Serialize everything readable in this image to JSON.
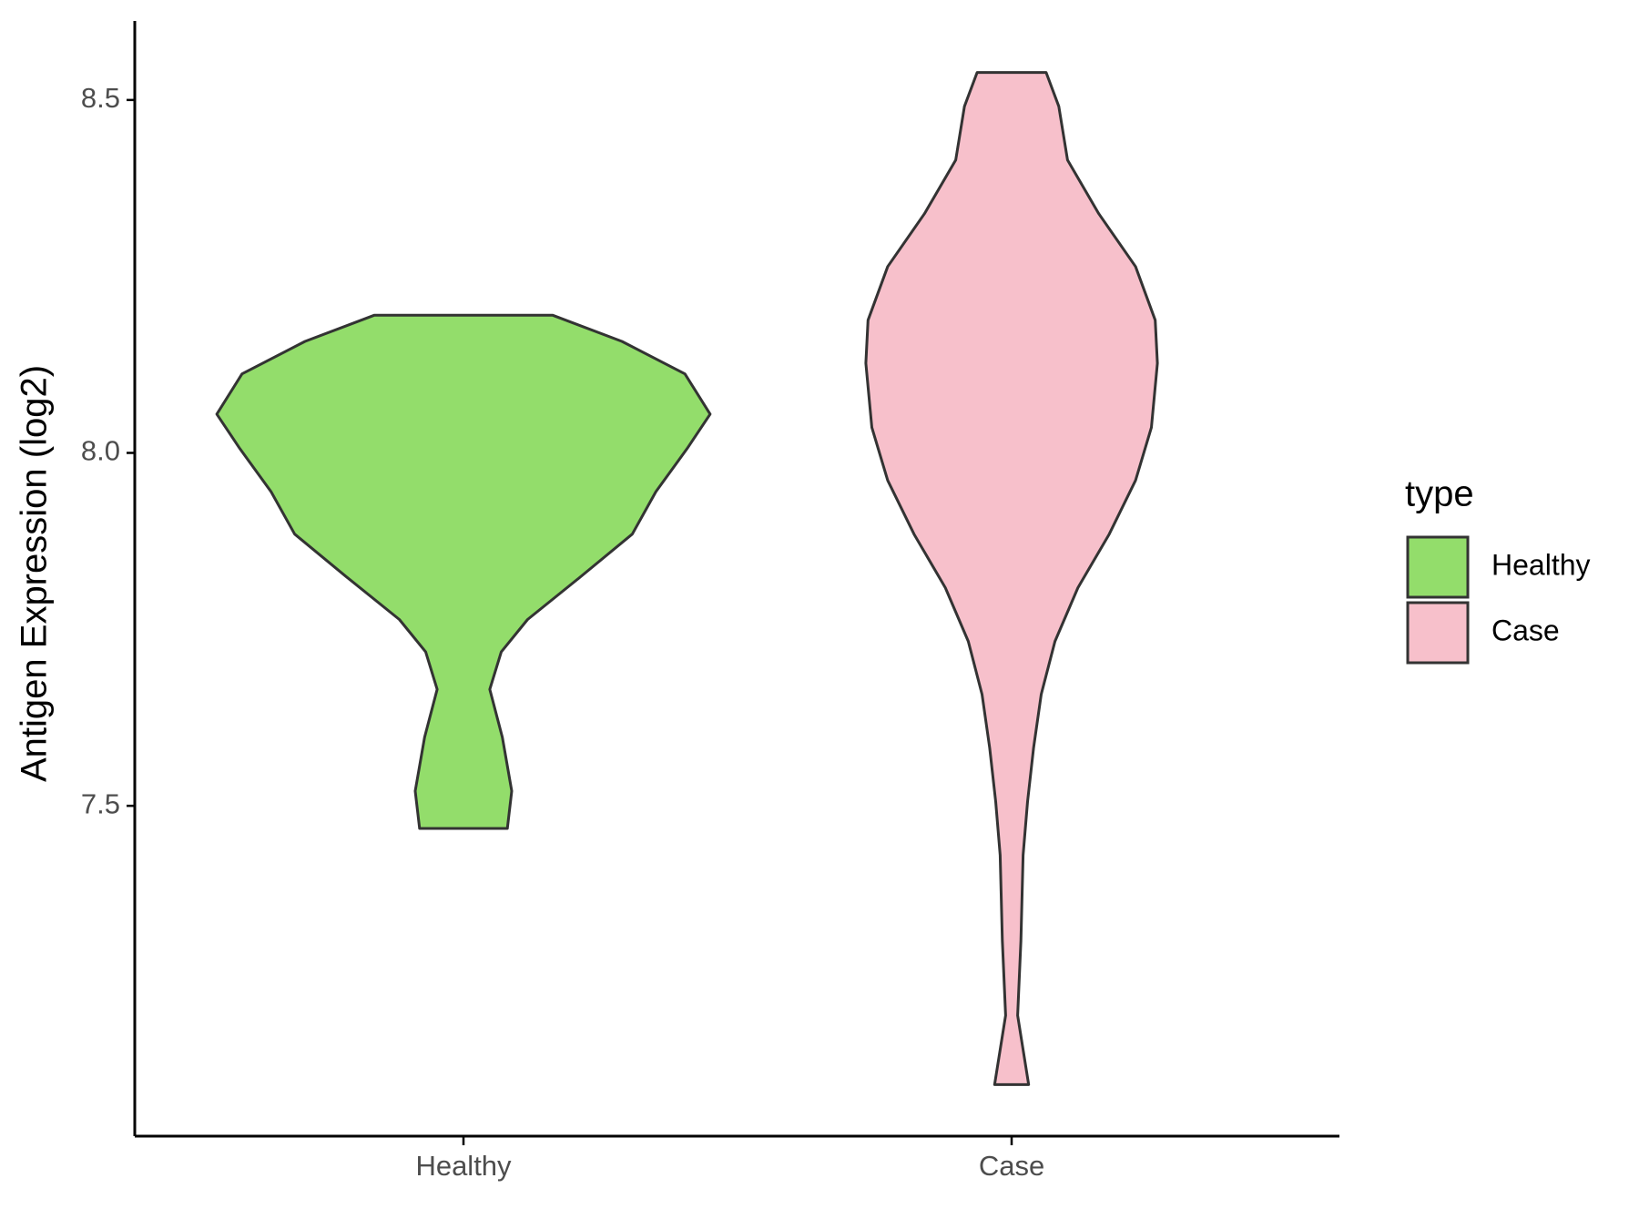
{
  "chart_data": {
    "type": "violin",
    "y_label": "Antigen Expression (log2)",
    "categories": [
      "Healthy",
      "Case"
    ],
    "legend_title": "type",
    "legend": "right",
    "ylim": [
      7.032,
      8.612
    ],
    "yticks": [
      7.5,
      {
        "value": 8,
        "label": "8.0"
      },
      8.5
    ],
    "series": [
      {
        "name": "Healthy",
        "color": "#93dd6b",
        "y": [
          8.195,
          8.158,
          8.112,
          8.055,
          8.006,
          7.945,
          7.885,
          7.824,
          7.764,
          7.718,
          7.665,
          7.597,
          7.521,
          7.468
        ],
        "half_width": [
          0.163,
          0.289,
          0.404,
          0.45,
          0.408,
          0.351,
          0.308,
          0.213,
          0.117,
          0.069,
          0.048,
          0.071,
          0.088,
          0.08
        ]
      },
      {
        "name": "Case",
        "color": "#f7c0cb",
        "y": [
          8.539,
          8.491,
          8.415,
          8.339,
          8.264,
          8.188,
          8.127,
          8.036,
          7.961,
          7.885,
          7.809,
          7.733,
          7.658,
          7.582,
          7.506,
          7.43,
          7.309,
          7.203,
          7.105
        ],
        "half_width": [
          0.063,
          0.086,
          0.102,
          0.159,
          0.226,
          0.262,
          0.266,
          0.255,
          0.226,
          0.178,
          0.121,
          0.079,
          0.054,
          0.04,
          0.029,
          0.021,
          0.017,
          0.011,
          0.031
        ]
      }
    ]
  }
}
